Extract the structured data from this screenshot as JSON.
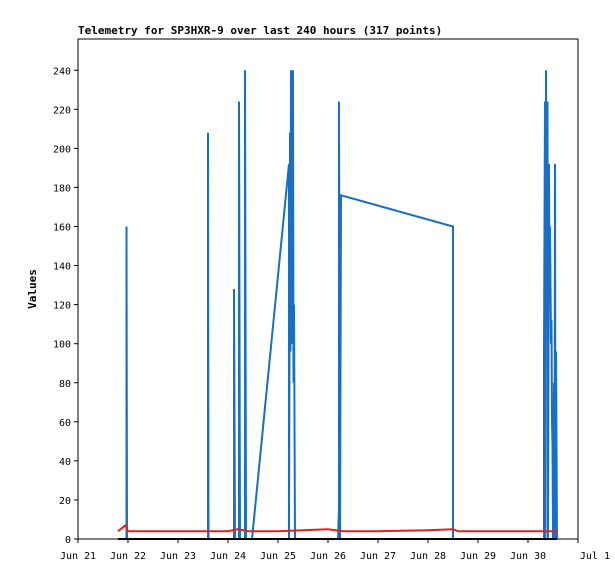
{
  "chart_data": {
    "type": "line",
    "title": "Telemetry for SP3HXR-9 over last 240 hours (317 points)",
    "xlabel": "",
    "ylabel": "Values",
    "x_ticks": [
      "Jun 21",
      "Jun 22",
      "Jun 23",
      "Jun 24",
      "Jun 25",
      "Jun 26",
      "Jun 27",
      "Jun 28",
      "Jun 29",
      "Jun 30",
      "Jul 1"
    ],
    "xlim": [
      0,
      10
    ],
    "y_ticks": [
      0,
      20,
      40,
      60,
      80,
      100,
      120,
      140,
      160,
      180,
      200,
      220,
      240
    ],
    "ylim": [
      0,
      256
    ],
    "grid": false,
    "series": [
      {
        "color": "#1a6fc4",
        "points": [
          [
            0.97,
            0
          ],
          [
            0.97,
            160
          ],
          [
            0.98,
            0
          ],
          [
            2.6,
            0
          ],
          [
            2.6,
            208
          ],
          [
            2.61,
            0
          ],
          [
            3.12,
            0
          ],
          [
            3.12,
            128
          ],
          [
            3.14,
            0
          ],
          [
            3.22,
            0
          ],
          [
            3.22,
            224
          ],
          [
            3.24,
            0
          ],
          [
            3.34,
            0
          ],
          [
            3.34,
            240
          ],
          [
            3.36,
            0
          ],
          [
            3.48,
            0
          ],
          [
            4.22,
            192
          ],
          [
            4.22,
            0
          ],
          [
            4.24,
            208
          ],
          [
            4.25,
            96
          ],
          [
            4.26,
            240
          ],
          [
            4.27,
            120
          ],
          [
            4.28,
            100
          ],
          [
            4.3,
            240
          ],
          [
            4.31,
            80
          ],
          [
            4.32,
            120
          ],
          [
            4.34,
            0
          ],
          [
            5.2,
            0
          ],
          [
            5.22,
            16
          ],
          [
            5.22,
            224
          ],
          [
            5.24,
            0
          ],
          [
            5.26,
            176
          ],
          [
            7.5,
            160
          ],
          [
            7.5,
            0
          ],
          [
            9.32,
            0
          ],
          [
            9.32,
            96
          ],
          [
            9.34,
            224
          ],
          [
            9.35,
            0
          ],
          [
            9.36,
            240
          ],
          [
            9.37,
            120
          ],
          [
            9.39,
            224
          ],
          [
            9.4,
            0
          ],
          [
            9.42,
            192
          ],
          [
            9.43,
            130
          ],
          [
            9.44,
            160
          ],
          [
            9.46,
            100
          ],
          [
            9.47,
            112
          ],
          [
            9.48,
            60
          ],
          [
            9.49,
            48
          ],
          [
            9.5,
            0
          ],
          [
            9.52,
            80
          ],
          [
            9.53,
            0
          ],
          [
            9.54,
            192
          ],
          [
            9.55,
            0
          ],
          [
            9.56,
            96
          ],
          [
            9.58,
            0
          ]
        ]
      },
      {
        "color": "#e02020",
        "points": [
          [
            0.8,
            4
          ],
          [
            0.9,
            6
          ],
          [
            0.95,
            7
          ],
          [
            1.0,
            4
          ],
          [
            2.0,
            4
          ],
          [
            3.0,
            4
          ],
          [
            3.2,
            5
          ],
          [
            3.4,
            4
          ],
          [
            4.0,
            4
          ],
          [
            5.0,
            5
          ],
          [
            5.3,
            4
          ],
          [
            6.0,
            4
          ],
          [
            7.0,
            4.5
          ],
          [
            7.5,
            5
          ],
          [
            7.6,
            4
          ],
          [
            8.0,
            4
          ],
          [
            9.0,
            4
          ],
          [
            9.58,
            4
          ]
        ]
      },
      {
        "color": "#000000",
        "points": [
          [
            0.8,
            0
          ],
          [
            9.58,
            0
          ]
        ]
      }
    ]
  }
}
